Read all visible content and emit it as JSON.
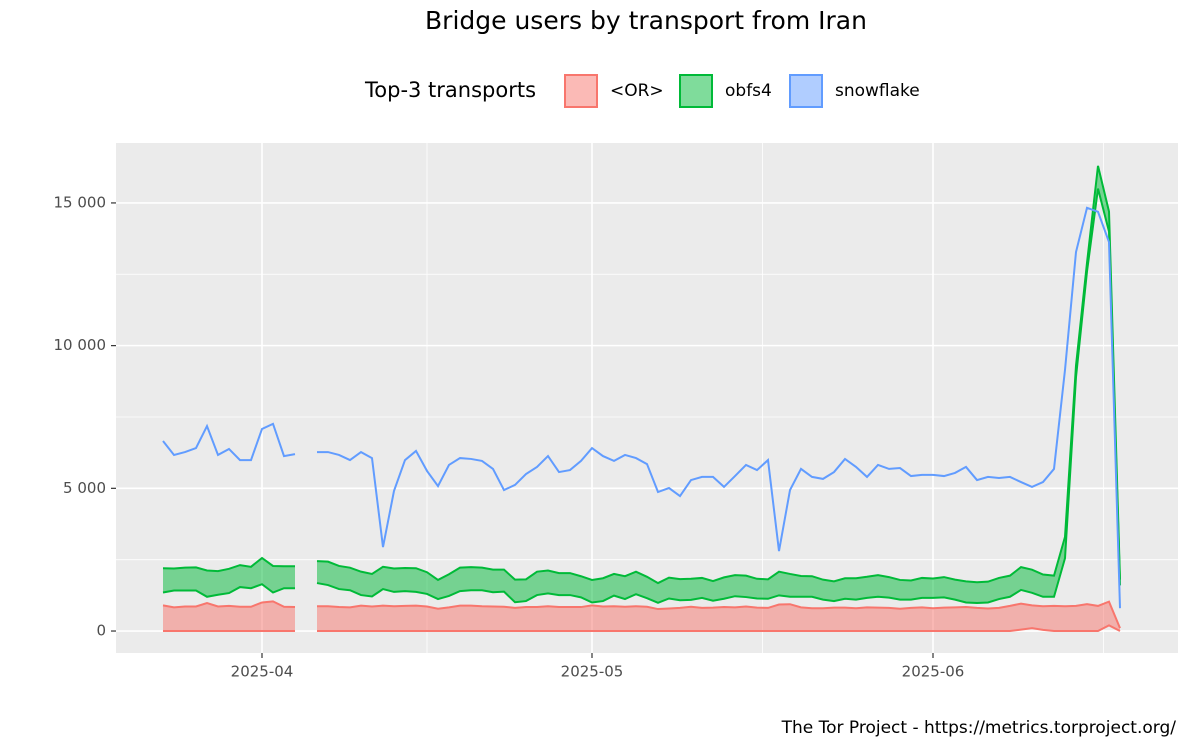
{
  "chart_data": {
    "type": "area",
    "title": "Bridge users by transport from Iran",
    "legend_title": "Top-3 transports",
    "legend_position": "top",
    "caption": "The Tor Project - https://metrics.torproject.org/",
    "grid": true,
    "categories": [
      null,
      null,
      null,
      null,
      null,
      null,
      null,
      null,
      null,
      "2025-04",
      null,
      null,
      null,
      null,
      null,
      null,
      null,
      null,
      null,
      null,
      null,
      null,
      null,
      null,
      null,
      null,
      null,
      null,
      null,
      null,
      null,
      null,
      null,
      null,
      null,
      null,
      null,
      null,
      null,
      "2025-05",
      null,
      null,
      null,
      null,
      null,
      null,
      null,
      null,
      null,
      null,
      null,
      null,
      null,
      null,
      null,
      null,
      null,
      null,
      null,
      null,
      null,
      null,
      null,
      null,
      null,
      null,
      null,
      null,
      null,
      null,
      "2025-06",
      null,
      null,
      null,
      null,
      null,
      null,
      null,
      null,
      null,
      null,
      null,
      null,
      null,
      null,
      null,
      null,
      null
    ],
    "ylim": [
      -770,
      17100
    ],
    "yticks": [
      0,
      {
        "value": 5000,
        "label": "5 000"
      },
      {
        "value": 10000,
        "label": "10 000"
      },
      {
        "value": 15000,
        "label": "15 000"
      }
    ],
    "series": [
      {
        "name": "<OR>",
        "color": "#F8766D",
        "values": [
          900,
          830,
          860,
          860,
          980,
          860,
          880,
          850,
          850,
          1000,
          1040,
          850,
          840,
          null,
          870,
          870,
          840,
          830,
          890,
          860,
          890,
          870,
          880,
          890,
          860,
          780,
          830,
          890,
          890,
          870,
          860,
          850,
          810,
          840,
          840,
          870,
          840,
          840,
          840,
          900,
          860,
          870,
          850,
          870,
          850,
          770,
          790,
          810,
          850,
          810,
          820,
          840,
          830,
          860,
          820,
          810,
          930,
          940,
          830,
          800,
          800,
          820,
          820,
          800,
          830,
          820,
          810,
          780,
          810,
          830,
          800,
          820,
          830,
          840,
          810,
          790,
          810,
          880,
          960,
          900,
          870,
          880,
          870,
          880,
          940,
          880,
          1030,
          100
        ],
        "low": [
          0,
          0,
          0,
          0,
          0,
          0,
          0,
          0,
          0,
          0,
          0,
          0,
          0,
          null,
          0,
          0,
          0,
          0,
          0,
          0,
          0,
          0,
          0,
          0,
          0,
          0,
          0,
          0,
          0,
          0,
          0,
          0,
          0,
          0,
          0,
          0,
          0,
          0,
          0,
          0,
          0,
          0,
          0,
          0,
          0,
          0,
          0,
          0,
          0,
          0,
          0,
          0,
          0,
          0,
          0,
          0,
          0,
          0,
          0,
          0,
          0,
          0,
          0,
          0,
          0,
          0,
          0,
          0,
          0,
          0,
          0,
          0,
          0,
          0,
          0,
          0,
          0,
          0,
          50,
          100,
          40,
          0,
          0,
          0,
          0,
          0,
          200,
          0
        ]
      },
      {
        "name": "obfs4",
        "color": "#00BA38",
        "values": [
          2200,
          2190,
          2220,
          2230,
          2120,
          2100,
          2180,
          2310,
          2250,
          2560,
          2280,
          2270,
          2270,
          null,
          2450,
          2430,
          2280,
          2220,
          2080,
          2000,
          2250,
          2190,
          2210,
          2200,
          2060,
          1790,
          1990,
          2220,
          2240,
          2220,
          2150,
          2150,
          1800,
          1810,
          2080,
          2120,
          2030,
          2030,
          1920,
          1790,
          1850,
          2000,
          1920,
          2080,
          1900,
          1680,
          1870,
          1820,
          1830,
          1860,
          1750,
          1880,
          1960,
          1940,
          1830,
          1810,
          2080,
          2000,
          1930,
          1920,
          1800,
          1740,
          1850,
          1850,
          1900,
          1960,
          1890,
          1790,
          1770,
          1860,
          1840,
          1890,
          1800,
          1740,
          1710,
          1730,
          1860,
          1940,
          2240,
          2150,
          1980,
          1940,
          3300,
          9300,
          12900,
          16300,
          14700,
          1800
        ],
        "low": [
          1350,
          1420,
          1420,
          1420,
          1200,
          1270,
          1330,
          1540,
          1500,
          1640,
          1350,
          1500,
          1500,
          null,
          1680,
          1610,
          1470,
          1430,
          1260,
          1210,
          1470,
          1370,
          1400,
          1370,
          1300,
          1120,
          1230,
          1400,
          1430,
          1430,
          1360,
          1380,
          1010,
          1050,
          1260,
          1320,
          1260,
          1260,
          1180,
          1000,
          1050,
          1240,
          1120,
          1290,
          1150,
          990,
          1140,
          1080,
          1090,
          1160,
          1060,
          1130,
          1220,
          1190,
          1140,
          1130,
          1250,
          1200,
          1200,
          1200,
          1100,
          1050,
          1130,
          1100,
          1160,
          1200,
          1170,
          1100,
          1100,
          1160,
          1160,
          1180,
          1100,
          1000,
          980,
          1000,
          1120,
          1200,
          1440,
          1340,
          1200,
          1200,
          2550,
          8900,
          12600,
          15500,
          14000,
          1600
        ]
      },
      {
        "name": "snowflake",
        "color": "#619CFF",
        "values": [
          6660,
          6170,
          6270,
          6410,
          7180,
          6170,
          6380,
          5990,
          5990,
          7080,
          7260,
          6130,
          6200,
          null,
          6270,
          6270,
          6170,
          5990,
          6270,
          6060,
          2940,
          4910,
          5990,
          6310,
          5610,
          5080,
          5820,
          6060,
          6030,
          5960,
          5680,
          4940,
          5120,
          5500,
          5750,
          6130,
          5570,
          5640,
          5960,
          6410,
          6130,
          5960,
          6170,
          6060,
          5850,
          4870,
          5010,
          4730,
          5290,
          5400,
          5400,
          5050,
          5430,
          5820,
          5640,
          5990,
          2800,
          4940,
          5680,
          5400,
          5330,
          5570,
          6030,
          5750,
          5400,
          5820,
          5680,
          5710,
          5430,
          5470,
          5470,
          5430,
          5540,
          5750,
          5290,
          5400,
          5360,
          5400,
          5220,
          5050,
          5220,
          5680,
          9150,
          13280,
          14830,
          14690,
          13630,
          800
        ]
      }
    ]
  }
}
